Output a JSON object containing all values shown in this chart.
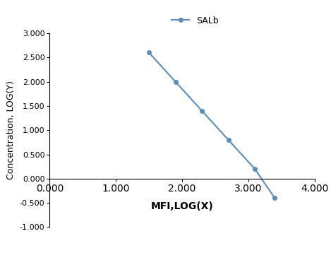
{
  "x": [
    1.5,
    1.9,
    2.3,
    2.7,
    3.1,
    3.4
  ],
  "y": [
    2.6,
    2.0,
    1.4,
    0.8,
    0.2,
    -0.4
  ],
  "line_color": "#5b8db8",
  "marker_color": "#5b8db8",
  "marker_style": "o",
  "marker_size": 4,
  "line_width": 1.5,
  "legend_label": "SALb",
  "xlabel": "MFI,LOG(X)",
  "ylabel": "Concentration, LOG(Y)",
  "xlim": [
    0.0,
    4.0
  ],
  "ylim": [
    -1.0,
    3.0
  ],
  "xticks": [
    0.0,
    1.0,
    2.0,
    3.0,
    4.0
  ],
  "yticks": [
    -1.0,
    -0.5,
    0.0,
    0.5,
    1.0,
    1.5,
    2.0,
    2.5,
    3.0
  ],
  "xtick_labels": [
    "0.000",
    "1.000",
    "2.000",
    "3.000",
    "4.000"
  ],
  "ytick_labels": [
    "-1.000",
    "-0.500",
    "0.000",
    "0.500",
    "1.000",
    "1.500",
    "2.000",
    "2.500",
    "3.000"
  ],
  "xlabel_fontsize": 10,
  "ylabel_fontsize": 9,
  "tick_fontsize": 8,
  "legend_fontsize": 9,
  "background_color": "#ffffff",
  "spine_color": "#000000"
}
